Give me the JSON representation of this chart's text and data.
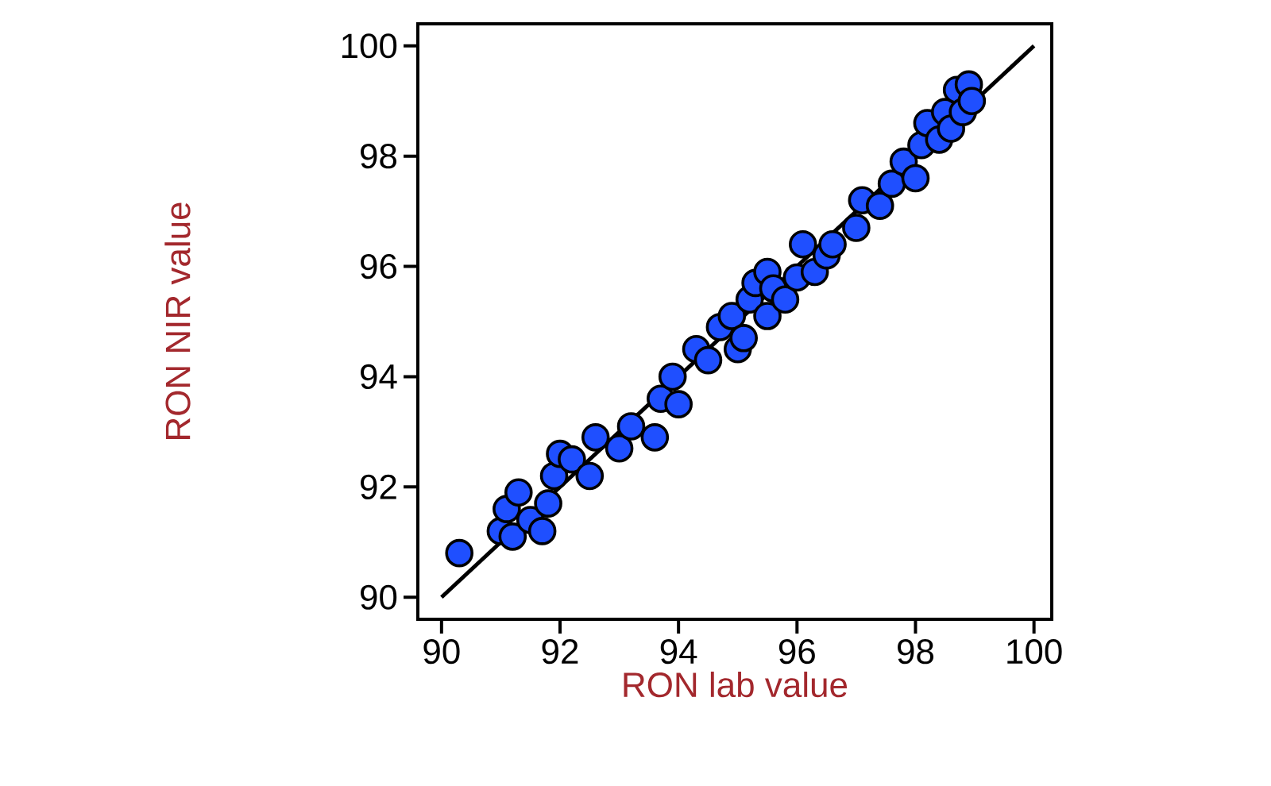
{
  "chart_data": {
    "type": "scatter",
    "xlabel": "RON lab value",
    "ylabel": "RON NIR value",
    "xlim": [
      89.6,
      100.3
    ],
    "ylim": [
      89.6,
      100.4
    ],
    "xticks": [
      90,
      92,
      94,
      96,
      98,
      100
    ],
    "yticks": [
      90,
      92,
      94,
      96,
      98,
      100
    ],
    "grid": false,
    "marker": "circle",
    "series": [
      {
        "color": "#1f4fff",
        "x": [
          90.3,
          91.0,
          91.1,
          91.3,
          91.2,
          91.5,
          91.7,
          91.8,
          91.9,
          92.0,
          92.2,
          92.5,
          92.6,
          93.0,
          93.2,
          93.6,
          93.7,
          93.9,
          94.0,
          94.3,
          94.5,
          94.7,
          94.9,
          95.0,
          95.1,
          95.2,
          95.3,
          95.5,
          95.5,
          95.6,
          95.8,
          96.0,
          96.1,
          96.3,
          96.5,
          96.6,
          97.0,
          97.1,
          97.4,
          97.6,
          97.8,
          98.0,
          98.1,
          98.2,
          98.4,
          98.5,
          98.6,
          98.7,
          98.8,
          98.9,
          98.95
        ],
        "values": [
          90.8,
          91.2,
          91.6,
          91.9,
          91.1,
          91.4,
          91.2,
          91.7,
          92.2,
          92.6,
          92.5,
          92.2,
          92.9,
          92.7,
          93.1,
          92.9,
          93.6,
          94.0,
          93.5,
          94.5,
          94.3,
          94.9,
          95.1,
          94.5,
          94.7,
          95.4,
          95.7,
          95.9,
          95.1,
          95.6,
          95.4,
          95.8,
          96.4,
          95.9,
          96.2,
          96.4,
          96.7,
          97.2,
          97.1,
          97.5,
          97.9,
          97.6,
          98.2,
          98.6,
          98.3,
          98.8,
          98.5,
          99.2,
          98.8,
          99.3,
          99.0
        ]
      },
      {
        "type": "line",
        "color": "#000000",
        "marker": "none",
        "line_style": "solid",
        "x": [
          90,
          100
        ],
        "values": [
          90,
          100
        ]
      }
    ]
  }
}
